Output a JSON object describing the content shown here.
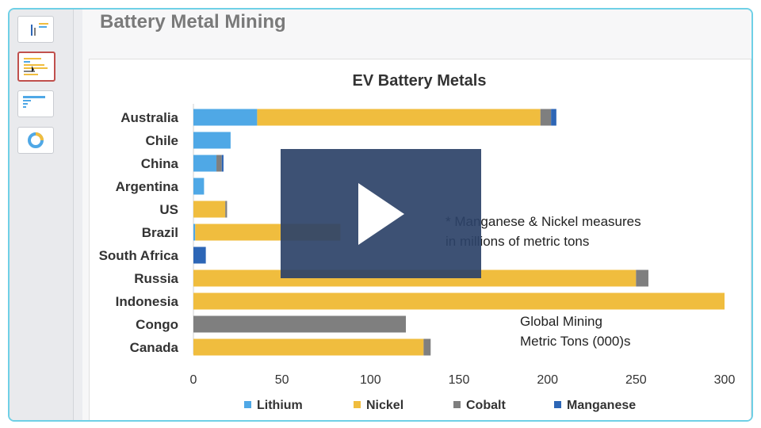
{
  "slide": {
    "title": "Battery Metal Mining"
  },
  "chart_data": {
    "type": "bar",
    "orientation": "horizontal",
    "stacked": true,
    "title": "EV Battery Metals",
    "categories": [
      "Australia",
      "Chile",
      "China",
      "Argentina",
      "US",
      "Brazil",
      "South Africa",
      "Russia",
      "Indonesia",
      "Congo",
      "Canada"
    ],
    "series": [
      {
        "name": "Lithium",
        "color": "#4fa8e6",
        "values": [
          36,
          21,
          13,
          6,
          0,
          1,
          0,
          0,
          0,
          0,
          0
        ]
      },
      {
        "name": "Nickel",
        "color": "#f0bd3e",
        "values": [
          160,
          0,
          0,
          0,
          18,
          82,
          0,
          250,
          300,
          0,
          130
        ]
      },
      {
        "name": "Cobalt",
        "color": "#7f7f7f",
        "values": [
          6,
          0,
          3,
          0,
          1,
          0,
          0,
          7,
          0,
          120,
          4
        ]
      },
      {
        "name": "Manganese",
        "color": "#2d66b6",
        "values": [
          3,
          0,
          1,
          0,
          0,
          0,
          7,
          0,
          0,
          0,
          0
        ]
      }
    ],
    "xlim": [
      0,
      300
    ],
    "xticks": [
      "0",
      "50",
      "100",
      "150",
      "200",
      "250",
      "300"
    ],
    "legend_position": "bottom",
    "annotations": [
      {
        "lines": [
          "* Manganese & Nickel measures",
          "in millions of metric tons"
        ]
      },
      {
        "lines": [
          "Global Mining",
          "Metric Tons (000)s"
        ]
      }
    ]
  }
}
